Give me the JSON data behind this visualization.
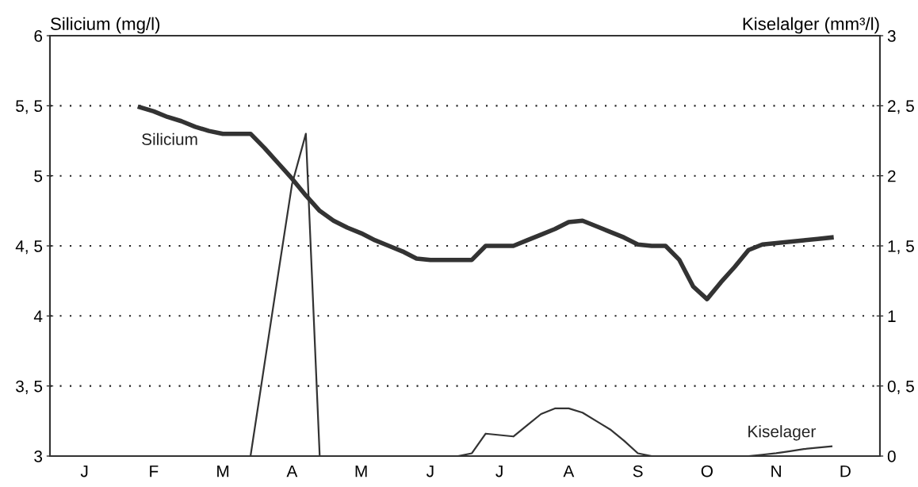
{
  "chart_data": {
    "type": "line",
    "ylabel": "Silicium (mg/l)",
    "y2label": "Kiselalger (mm³/l)",
    "categories": [
      null,
      null,
      "J",
      null,
      null,
      null,
      null,
      "F",
      null,
      null,
      null,
      null,
      "M",
      null,
      null,
      null,
      null,
      "A",
      null,
      null,
      null,
      null,
      "M",
      null,
      null,
      null,
      null,
      "J",
      null,
      null,
      null,
      null,
      "J",
      null,
      null,
      null,
      null,
      "A",
      null,
      null,
      null,
      null,
      "S",
      null,
      null,
      null,
      null,
      "O",
      null,
      null,
      null,
      null,
      "N",
      null,
      null,
      null,
      null,
      "D",
      null,
      null
    ],
    "ylim": [
      3,
      6
    ],
    "yticks": [
      3,
      {
        "value": 3.5,
        "label": "3, 5"
      },
      4,
      {
        "value": 4.5,
        "label": "4, 5"
      },
      5,
      {
        "value": 5.5,
        "label": "5, 5"
      },
      6
    ],
    "y2lim": [
      0,
      3
    ],
    "y2ticks": [
      0,
      {
        "value": 0.5,
        "label": "0, 5"
      },
      1,
      {
        "value": 1.5,
        "label": "1, 5"
      },
      2,
      {
        "value": 2.5,
        "label": "2, 5"
      },
      3
    ],
    "grid": "y",
    "line_style": "solid",
    "marker": "none",
    "series": [
      {
        "name": "Silicium",
        "color": "#333333",
        "values": [
          null,
          null,
          null,
          null,
          null,
          null,
          5.49,
          5.46,
          5.42,
          5.39,
          5.35,
          5.32,
          5.3,
          5.3,
          5.3,
          5.2,
          5.09,
          4.98,
          4.86,
          4.75,
          4.68,
          4.63,
          4.59,
          4.54,
          4.5,
          4.46,
          4.41,
          4.4,
          4.4,
          4.4,
          4.4,
          4.5,
          4.5,
          4.5,
          4.54,
          4.58,
          4.62,
          4.67,
          4.68,
          4.64,
          4.6,
          4.56,
          4.51,
          4.5,
          4.5,
          4.4,
          4.21,
          4.12,
          4.24,
          4.35,
          4.47,
          4.51,
          4.52,
          4.53,
          4.54,
          4.55,
          4.56,
          null,
          null,
          null
        ]
      },
      {
        "name": "Kiselager",
        "color": "#333333",
        "axis": "y2",
        "values": [
          0,
          0,
          0,
          0,
          0,
          0,
          0,
          0,
          0,
          0,
          0,
          0,
          0,
          0,
          0,
          0.65,
          1.3,
          1.94,
          2.3,
          0,
          0,
          0,
          0,
          0,
          0,
          0,
          0,
          0,
          0,
          0,
          0.02,
          0.16,
          0.15,
          0.14,
          0.22,
          0.3,
          0.34,
          0.34,
          0.31,
          0.25,
          0.19,
          0.11,
          0.02,
          0,
          0,
          0,
          0,
          0,
          0,
          0,
          0,
          0.01,
          0.02,
          0.035,
          0.05,
          0.06,
          0.07,
          null,
          null,
          null
        ]
      }
    ]
  }
}
